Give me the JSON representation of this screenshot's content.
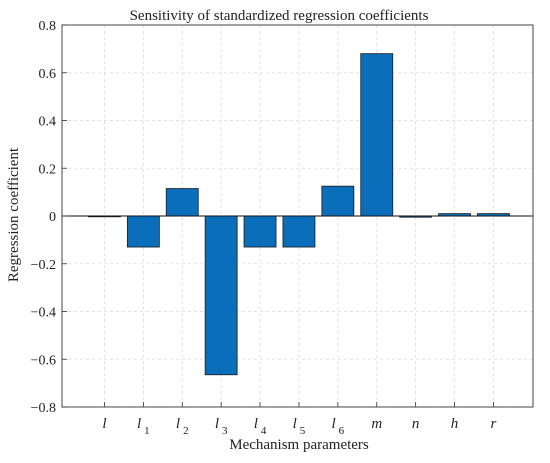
{
  "chart_data": {
    "type": "bar",
    "title": "Sensitivity of standardized regression coefficients",
    "xlabel": "Mechanism parameters",
    "ylabel": "Regression coefficient",
    "ylim": [
      -0.8,
      0.8
    ],
    "yticks": [
      -0.8,
      -0.6,
      -0.4,
      -0.2,
      0,
      0.2,
      0.4,
      0.6,
      0.8
    ],
    "ytick_labels": [
      "−0.8",
      "−0.6",
      "−0.4",
      "−0.2",
      "0",
      "0.2",
      "0.4",
      "0.6",
      "0.8"
    ],
    "grid": true,
    "bar_color": "#0a6eba",
    "categories": [
      {
        "main": "l",
        "sub": ""
      },
      {
        "main": "l",
        "sub": "1"
      },
      {
        "main": "l",
        "sub": "2"
      },
      {
        "main": "l",
        "sub": "3"
      },
      {
        "main": "l",
        "sub": "4"
      },
      {
        "main": "l",
        "sub": "5"
      },
      {
        "main": "l",
        "sub": "6"
      },
      {
        "main": "m",
        "sub": ""
      },
      {
        "main": "n",
        "sub": ""
      },
      {
        "main": "h",
        "sub": ""
      },
      {
        "main": "r",
        "sub": ""
      }
    ],
    "values": [
      0.0,
      -0.13,
      0.115,
      -0.665,
      -0.13,
      -0.13,
      0.125,
      0.68,
      -0.005,
      0.01,
      0.01
    ]
  }
}
